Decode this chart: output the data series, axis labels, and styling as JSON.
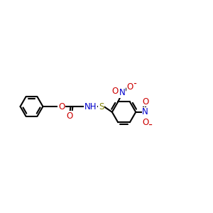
{
  "background_color": "#ffffff",
  "bond_color": "#000000",
  "bond_width": 1.5,
  "figsize": [
    3.0,
    3.0
  ],
  "dpi": 100,
  "atoms": {
    "O_red": "#cc0000",
    "N_blue": "#0000cc",
    "S_olive": "#808000",
    "C_black": "#000000"
  },
  "xlim": [
    0,
    12
  ],
  "ylim": [
    2,
    10
  ],
  "font_size_atoms": 8.5,
  "font_size_charge": 8
}
